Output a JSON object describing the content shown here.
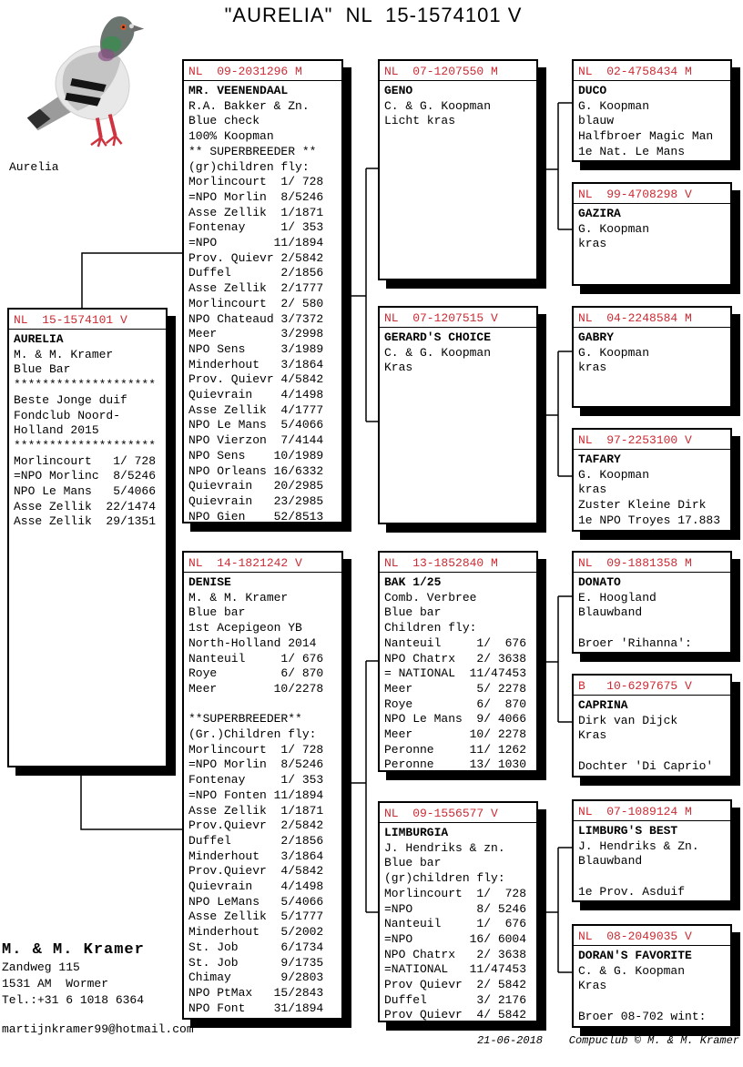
{
  "title": "\"AURELIA\"  NL  15-1574101 V",
  "pigeon_caption": "Aurelia",
  "accent_color": "#CC2B33",
  "boxes": {
    "subject": {
      "ring": "NL  15-1574101 V",
      "name": "AURELIA",
      "lines": [
        "M. & M. Kramer",
        "Blue Bar",
        "********************",
        "Beste Jonge duif",
        "Fondclub Noord-",
        "Holland 2015",
        "********************",
        "Morlincourt   1/ 728",
        "=NPO Morlinc  8/5246",
        "NPO Le Mans   5/4066",
        "Asse Zellik  22/1474",
        "Asse Zellik  29/1351"
      ]
    },
    "veenendaal": {
      "ring": "NL  09-2031296 M",
      "name": "MR. VEENENDAAL",
      "lines": [
        "R.A. Bakker & Zn.",
        "Blue check",
        "100% Koopman",
        "** SUPERBREEDER **",
        "(gr)children fly:",
        "Morlincourt  1/ 728",
        "=NPO Morlin  8/5246",
        "Asse Zellik  1/1871",
        "Fontenay     1/ 353",
        "=NPO        11/1894",
        "Prov. Quievr 2/5842",
        "Duffel       2/1856",
        "Asse Zellik  2/1777",
        "Morlincourt  2/ 580",
        "NPO Chateaud 3/7372",
        "Meer         3/2998",
        "NPO Sens     3/1989",
        "Minderhout   3/1864",
        "Prov. Quievr 4/5842",
        "Quievrain    4/1498",
        "Asse Zellik  4/1777",
        "NPO Le Mans  5/4066",
        "NPO Vierzon  7/4144",
        "NPO Sens    10/1989",
        "NPO Orleans 16/6332",
        "Quievrain   20/2985",
        "Quievrain   23/2985",
        "NPO Gien    52/8513"
      ]
    },
    "denise": {
      "ring": "NL  14-1821242 V",
      "name": "DENISE",
      "lines": [
        "M. & M. Kramer",
        "Blue bar",
        "1st Acepigeon YB",
        "North-Holland 2014",
        "Nanteuil     1/ 676",
        "Roye         6/ 870",
        "Meer        10/2278",
        "",
        "**SUPERBREEDER**",
        "(Gr.)Children fly:",
        "Morlincourt  1/ 728",
        "=NPO Morlin  8/5246",
        "Fontenay     1/ 353",
        "=NPO Fonten 11/1894",
        "Asse Zellik  1/1871",
        "Prov.Quievr  2/5842",
        "Duffel       2/1856",
        "Minderhout   3/1864",
        "Prov.Quievr  4/5842",
        "Quievrain    4/1498",
        "NPO LeMans   5/4066",
        "Asse Zellik  5/1777",
        "Minderhout   5/2002",
        "St. Job      6/1734",
        "St. Job      9/1735",
        "Chimay       9/2803",
        "NPO PtMax   15/2843",
        "NPO Font    31/1894"
      ]
    },
    "geno": {
      "ring": "NL  07-1207550 M",
      "name": "GENO",
      "lines": [
        "C. & G. Koopman",
        "Licht kras"
      ]
    },
    "gerards": {
      "ring": "NL  07-1207515 V",
      "name": "GERARD'S CHOICE",
      "lines": [
        "C. & G. Koopman",
        "Kras"
      ]
    },
    "bak": {
      "ring": "NL  13-1852840 M",
      "name": "BAK 1/25",
      "lines": [
        "Comb. Verbree",
        "Blue bar",
        "Children fly:",
        "Nanteuil     1/  676",
        "NPO Chatrx   2/ 3638",
        "= NATIONAL  11/47453",
        "Meer         5/ 2278",
        "Roye         6/  870",
        "NPO Le Mans  9/ 4066",
        "Meer        10/ 2278",
        "Peronne     11/ 1262",
        "Peronne     13/ 1030"
      ]
    },
    "limburgia": {
      "ring": "NL  09-1556577 V",
      "name": "LIMBURGIA",
      "lines": [
        "J. Hendriks & zn.",
        "Blue bar",
        "(gr)children fly:",
        "Morlincourt  1/  728",
        "=NPO         8/ 5246",
        "Nanteuil     1/  676",
        "=NPO        16/ 6004",
        "NPO Chatrx   2/ 3638",
        "=NATIONAL   11/47453",
        "Prov Quievr  2/ 5842",
        "Duffel       3/ 2176",
        "Prov Quievr  4/ 5842"
      ]
    },
    "duco": {
      "ring": "NL  02-4758434 M",
      "name": "DUCO",
      "lines": [
        "G. Koopman",
        "blauw",
        "Halfbroer Magic Man",
        "1e Nat. Le Mans"
      ]
    },
    "gazira": {
      "ring": "NL  99-4708298 V",
      "name": "GAZIRA",
      "lines": [
        "G. Koopman",
        "kras"
      ]
    },
    "gabry": {
      "ring": "NL  04-2248584 M",
      "name": "GABRY",
      "lines": [
        "G. Koopman",
        "kras"
      ]
    },
    "tafary": {
      "ring": "NL  97-2253100 V",
      "name": "TAFARY",
      "lines": [
        "G. Koopman",
        "kras",
        "Zuster Kleine Dirk",
        "1e NPO Troyes 17.883"
      ]
    },
    "donato": {
      "ring": "NL  09-1881358 M",
      "name": "DONATO",
      "lines": [
        "E. Hoogland",
        "Blauwband",
        "",
        "Broer 'Rihanna':"
      ]
    },
    "caprina": {
      "ring": "B   10-6297675 V",
      "name": "CAPRINA",
      "lines": [
        "Dirk van Dijck",
        "Kras",
        "",
        "Dochter 'Di Caprio'"
      ]
    },
    "limburgsbest": {
      "ring": "NL  07-1089124 M",
      "name": "LIMBURG'S BEST",
      "lines": [
        "J. Hendriks & Zn.",
        "Blauwband",
        "",
        "1e Prov. Asduif"
      ]
    },
    "dorans": {
      "ring": "NL  08-2049035 V",
      "name": "DORAN'S FAVORITE",
      "lines": [
        "C. & G. Koopman",
        "Kras",
        "",
        "Broer 08-702 wint:"
      ]
    }
  },
  "contact": {
    "name": "M. & M. Kramer",
    "address1": "Zandweg 115",
    "address2": "1531 AM  Wormer",
    "phone": "Tel.:+31 6 1018 6364",
    "email": "martijnkramer99@hotmail.com"
  },
  "footer": {
    "text": "21-06-2018    Compuclub © M. & M. Kramer"
  }
}
